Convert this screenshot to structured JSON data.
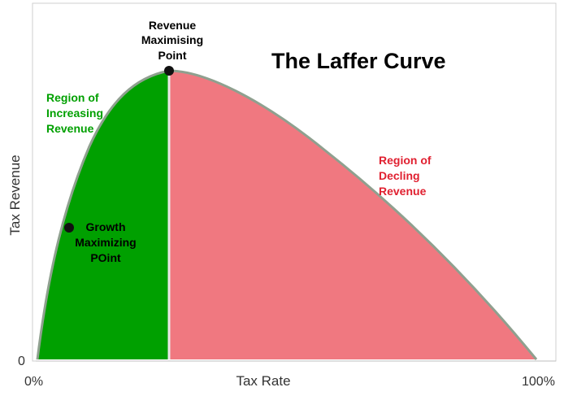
{
  "title": "The Laffer Curve",
  "axes": {
    "x_label": "Tax Rate",
    "y_label": "Tax Revenue",
    "x_min_label": "0%",
    "x_max_label": "100%",
    "y_zero_label": "0"
  },
  "annotations": {
    "revenue_max": [
      "Revenue",
      "Maximising",
      "Point"
    ],
    "growth_max": [
      "Growth",
      "Maximizing",
      "POint"
    ],
    "increasing": [
      "Region of",
      "Increasing",
      "Revenue"
    ],
    "declining": [
      "Region of",
      "Decling",
      "Revenue"
    ]
  },
  "colors": {
    "increasing_region": "#00a000",
    "declining_region": "#f07880",
    "curve": "#8fa08f",
    "increasing_text": "#00a000",
    "declining_text": "#e02030",
    "point": "#111111"
  }
}
